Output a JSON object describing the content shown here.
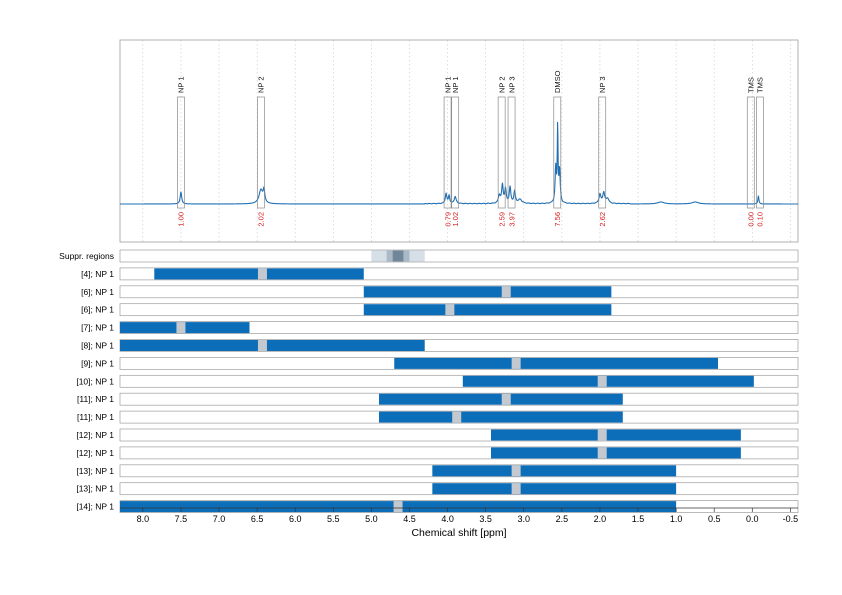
{
  "chart_data": {
    "type": "bar",
    "xlabel": "Chemical shift [ppm]",
    "xlim": [
      8.3,
      -0.6
    ],
    "x_ticks": [
      "8.0",
      "7.5",
      "7.0",
      "6.5",
      "6.0",
      "5.5",
      "5.0",
      "4.5",
      "4.0",
      "3.5",
      "3.0",
      "2.5",
      "2.0",
      "1.5",
      "1.0",
      "0.5",
      "0.0",
      "-0.5"
    ],
    "grid": true,
    "spectrum": {
      "peaks": [
        {
          "label": "NP 1",
          "shift": 7.5,
          "integral": "1.00"
        },
        {
          "label": "NP 2",
          "shift": 6.45,
          "integral": "2.02"
        },
        {
          "label": "NP 1",
          "shift": 4.0,
          "integral": "0.79"
        },
        {
          "label": "NP 1",
          "shift": 3.9,
          "integral": "1.02"
        },
        {
          "label": "NP 2",
          "shift": 3.29,
          "integral": "2.59"
        },
        {
          "label": "NP 3",
          "shift": 3.16,
          "integral": "3.97"
        },
        {
          "label": "DMSO",
          "shift": 2.56,
          "integral": "7.56"
        },
        {
          "label": "NP 3",
          "shift": 1.97,
          "integral": "2.62"
        },
        {
          "label": "TMS",
          "shift": 0.02,
          "integral": "0.00"
        },
        {
          "label": "TMS",
          "shift": -0.1,
          "integral": "0.10"
        }
      ]
    },
    "suppression": {
      "label": "Suppr. regions",
      "regions": [
        {
          "from": 5.0,
          "to": 4.3,
          "level": 0.3
        },
        {
          "from": 4.8,
          "to": 4.5,
          "level": 0.6
        },
        {
          "from": 4.72,
          "to": 4.58,
          "level": 1.0
        }
      ]
    },
    "rows": [
      {
        "label": "[4]; NP 1",
        "from": 7.85,
        "to": 5.1,
        "gap": 6.43
      },
      {
        "label": "[6]; NP 1",
        "from": 5.1,
        "to": 1.85,
        "gap": 3.23
      },
      {
        "label": "[6]; NP 1",
        "from": 5.1,
        "to": 1.85,
        "gap": 3.97
      },
      {
        "label": "[7]; NP 1",
        "from": 8.3,
        "to": 6.6,
        "gap": 7.5
      },
      {
        "label": "[8]; NP 1",
        "from": 8.3,
        "to": 4.3,
        "gap": 6.43
      },
      {
        "label": "[9]; NP 1",
        "from": 4.7,
        "to": 0.45,
        "gap": 3.1
      },
      {
        "label": "[10]; NP 1",
        "from": 3.8,
        "to": -0.02,
        "gap": 1.97
      },
      {
        "label": "[11]; NP 1",
        "from": 4.9,
        "to": 1.7,
        "gap": 3.23
      },
      {
        "label": "[11]; NP 1",
        "from": 4.9,
        "to": 1.7,
        "gap": 3.88
      },
      {
        "label": "[12]; NP 1",
        "from": 3.43,
        "to": 0.15,
        "gap": 1.97
      },
      {
        "label": "[12]; NP 1",
        "from": 3.43,
        "to": 0.15,
        "gap": 1.97
      },
      {
        "label": "[13]; NP 1",
        "from": 4.2,
        "to": 1.0,
        "gap": 3.1
      },
      {
        "label": "[13]; NP 1",
        "from": 4.2,
        "to": 1.0,
        "gap": 3.1
      },
      {
        "label": "[14]; NP 1",
        "from": 8.3,
        "to": 1.0,
        "gap": 4.65
      }
    ]
  },
  "colors": {
    "bar": "#0c6eb9",
    "gap": "#c4c9cf",
    "spectrum": "#1f6fb4",
    "integral": "#d62020",
    "suppression_levels": [
      "#d6dee6",
      "#a9b9c8",
      "#6f8799"
    ]
  }
}
